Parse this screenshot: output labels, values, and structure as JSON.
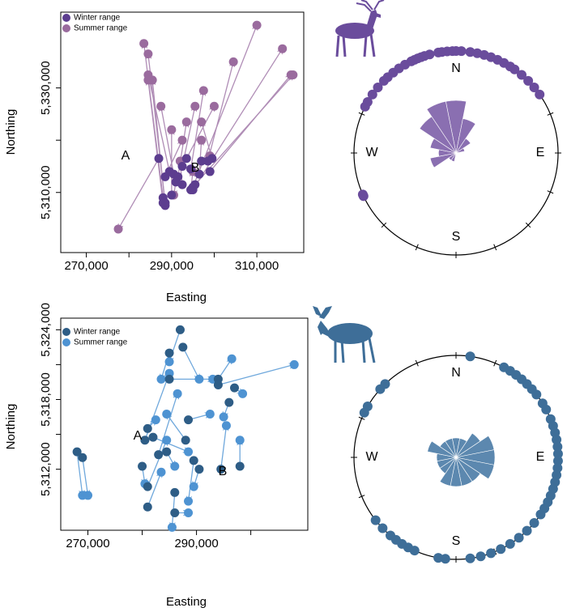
{
  "chart_data": [
    {
      "type": "migration",
      "xlabel": "Easting",
      "ylabel": "Northing",
      "xlim": [
        264000,
        321000
      ],
      "ylim": [
        5298500,
        5344500
      ],
      "xticks": [
        {
          "value": 270000,
          "label": "270,000"
        },
        {
          "value": 290000,
          "label": "290,000"
        },
        {
          "value": 310000,
          "label": "310,000"
        }
      ],
      "xminorticks": [
        280000,
        300000
      ],
      "yticks": [
        {
          "value": 5310000,
          "label": "5,310,000"
        },
        {
          "value": 5330000,
          "label": "5,330,000"
        }
      ],
      "yminorticks": [
        5320000
      ],
      "arrow_color": "#b08db6",
      "annotations": [
        "A",
        "B"
      ],
      "series": [
        {
          "name": "Winter range",
          "color": "#5c3d8f",
          "x": [
            287000,
            288000,
            288500,
            288500,
            289500,
            295000,
            295000,
            295500,
            299000,
            298500,
            294500,
            293500,
            292500,
            290500,
            290000,
            291500,
            299500,
            296500,
            291000,
            288500,
            297000,
            294500,
            292500,
            288000
          ],
          "y": [
            5316500,
            5309000,
            5308000,
            5307500,
            5314000,
            5311000,
            5310500,
            5311500,
            5314000,
            5316000,
            5314500,
            5316500,
            5315000,
            5313500,
            5309500,
            5313000,
            5316500,
            5313500,
            5312000,
            5313000,
            5316000,
            5310500,
            5311500,
            5308000
          ]
        },
        {
          "name": "Summer range",
          "color": "#9a6b9e",
          "x": [
            277500,
            283500,
            284500,
            285500,
            284500,
            310000,
            316000,
            318500,
            318000,
            304500,
            297500,
            300000,
            295500,
            287500,
            290000,
            293500,
            297000,
            297000,
            290500,
            292500,
            299000,
            295000,
            292000,
            284500
          ],
          "y": [
            5303000,
            5338500,
            5336500,
            5331500,
            5332500,
            5342000,
            5337500,
            5332500,
            5332500,
            5335000,
            5329500,
            5326500,
            5326500,
            5326500,
            5322000,
            5323500,
            5323500,
            5320000,
            5309500,
            5320000,
            5317000,
            5314000,
            5316000,
            5331500
          ]
        }
      ]
    },
    {
      "type": "rose",
      "color": "#6a4c9c",
      "petal_color": "#7d5fa8",
      "compass": [
        "N",
        "E",
        "S",
        "W"
      ],
      "bearings": [
        245,
        246,
        297,
        300,
        305,
        310,
        315,
        318,
        322,
        326,
        330,
        334,
        336,
        338,
        340,
        342,
        345,
        350,
        352,
        355,
        358,
        0,
        3,
        8,
        12,
        16,
        20,
        24,
        28,
        32,
        35,
        40,
        45,
        50,
        55
      ],
      "rose": {
        "angles": [
          0,
          22.5,
          45,
          67.5,
          90,
          112.5,
          135,
          157.5,
          180,
          202.5,
          225,
          247.5,
          270,
          292.5,
          315,
          337.5
        ],
        "values": [
          6,
          4,
          2,
          1,
          0,
          0,
          0,
          0,
          0,
          1,
          1,
          3,
          2,
          3,
          5,
          6
        ]
      }
    },
    {
      "type": "migration",
      "xlabel": "Easting",
      "ylabel": "Northing",
      "xlim": [
        265000,
        310500
      ],
      "ylim": [
        5306750,
        5325000
      ],
      "xticks": [
        {
          "value": 270000,
          "label": "270,000"
        },
        {
          "value": 290000,
          "label": "290,000"
        }
      ],
      "xminorticks": [
        280000,
        300000
      ],
      "yticks": [
        {
          "value": 5312000,
          "label": "5,312,000"
        },
        {
          "value": 5318000,
          "label": "5,318,000"
        },
        {
          "value": 5324000,
          "label": "5,324,000"
        }
      ],
      "yminorticks": [
        5315000,
        5321000
      ],
      "arrow_color": "#6fa8dc",
      "annotations": [
        "A",
        "B"
      ],
      "series": [
        {
          "name": "Winter range",
          "color": "#2e5d86",
          "x": [
            268000,
            269000,
            287000,
            285000,
            287500,
            285000,
            294000,
            294000,
            297000,
            296000,
            298000,
            294500,
            288500,
            281000,
            280500,
            282000,
            280000,
            281000,
            281000,
            286000,
            286000,
            289500,
            290500,
            284500,
            283000,
            288000
          ],
          "y": [
            5313500,
            5313000,
            5324000,
            5322000,
            5322500,
            5319750,
            5319750,
            5319250,
            5319000,
            5317750,
            5312250,
            5312000,
            5316250,
            5315500,
            5314500,
            5314750,
            5312250,
            5310500,
            5308750,
            5308250,
            5310000,
            5312750,
            5312000,
            5313500,
            5313250,
            5314500
          ]
        },
        {
          "name": "Summer range",
          "color": "#4e93d2",
          "x": [
            269000,
            270000,
            285000,
            283500,
            290500,
            293000,
            296500,
            308000,
            298500,
            295000,
            298000,
            295500,
            292500,
            282500,
            285000,
            288500,
            280500,
            284500,
            283500,
            288500,
            285500,
            288500,
            289500,
            286000,
            286500,
            284500
          ],
          "y": [
            5309750,
            5309750,
            5321250,
            5319750,
            5319750,
            5319750,
            5321500,
            5321000,
            5318500,
            5316500,
            5314500,
            5315750,
            5316750,
            5316250,
            5320250,
            5313500,
            5310750,
            5314500,
            5311750,
            5308250,
            5307000,
            5309250,
            5310500,
            5312250,
            5318500,
            5316750
          ]
        }
      ]
    },
    {
      "type": "rose",
      "color": "#3e6e98",
      "petal_color": "#4a7ba6",
      "compass": [
        "N",
        "E",
        "S",
        "W"
      ],
      "bearings": [
        8,
        28,
        32,
        36,
        40,
        44,
        48,
        52,
        58,
        62,
        68,
        72,
        76,
        80,
        84,
        88,
        92,
        96,
        100,
        104,
        108,
        112,
        116,
        120,
        124,
        130,
        136,
        142,
        148,
        154,
        160,
        166,
        172,
        186,
        190,
        204,
        208,
        212,
        216,
        220,
        226,
        232,
        296,
        300,
        312,
        316
      ],
      "rose": {
        "angles": [
          0,
          22.5,
          45,
          67.5,
          90,
          112.5,
          135,
          157.5,
          180,
          202.5,
          225,
          247.5,
          270,
          292.5,
          315,
          337.5
        ],
        "values": [
          2,
          2,
          3,
          4,
          4,
          4,
          3,
          3,
          3,
          3,
          2,
          2,
          2,
          3,
          2,
          2
        ]
      }
    }
  ]
}
